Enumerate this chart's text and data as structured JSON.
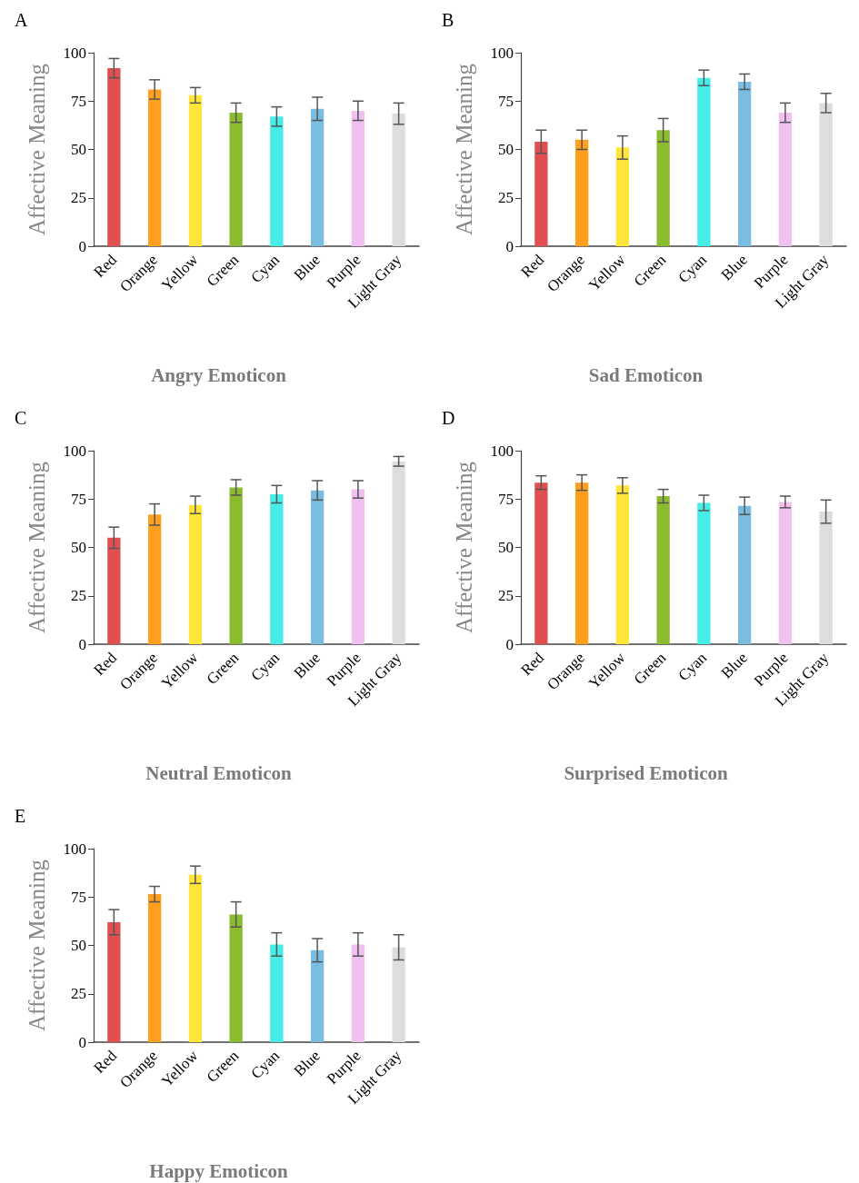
{
  "chart_data": [
    {
      "type": "bar",
      "title": "Angry Emoticon",
      "annotations": [
        "A"
      ],
      "ylabel": "Affective Meaning",
      "categories": [
        "Red",
        "Orange",
        "Yellow",
        "Green",
        "Cyan",
        "Blue",
        "Purple",
        "Light Gray"
      ],
      "values": [
        92,
        81,
        78,
        69,
        67,
        71,
        70,
        68.5
      ],
      "errors": [
        5,
        5,
        4,
        5,
        5,
        6,
        5,
        5.5
      ],
      "colors": [
        "#e05050",
        "#ff9f1c",
        "#ffe53b",
        "#8bbb2f",
        "#45ede6",
        "#7abde0",
        "#f0c0f0",
        "#dddddd"
      ],
      "ylim": [
        0,
        100
      ],
      "yticks": [
        0,
        25,
        50,
        75,
        100
      ]
    },
    {
      "type": "bar",
      "title": "Sad Emoticon",
      "annotations": [
        "B"
      ],
      "ylabel": "Affective Meaning",
      "categories": [
        "Red",
        "Orange",
        "Yellow",
        "Green",
        "Cyan",
        "Blue",
        "Purple",
        "Light Gray"
      ],
      "values": [
        54,
        55,
        51,
        60,
        87,
        85,
        69,
        74
      ],
      "errors": [
        6,
        5,
        6,
        6,
        4,
        4,
        5,
        5
      ],
      "colors": [
        "#e05050",
        "#ff9f1c",
        "#ffe53b",
        "#8bbb2f",
        "#45ede6",
        "#7abde0",
        "#f0c0f0",
        "#dddddd"
      ],
      "ylim": [
        0,
        100
      ],
      "yticks": [
        0,
        25,
        50,
        75,
        100
      ]
    },
    {
      "type": "bar",
      "title": "Neutral Emoticon",
      "annotations": [
        "C"
      ],
      "ylabel": "Affective Meaning",
      "categories": [
        "Red",
        "Orange",
        "Yellow",
        "Green",
        "Cyan",
        "Blue",
        "Purple",
        "Light Gray"
      ],
      "values": [
        55,
        67,
        72,
        81,
        77.5,
        79.5,
        80,
        94.5
      ],
      "errors": [
        5.5,
        5.5,
        4.5,
        4,
        4.5,
        5,
        4.5,
        2.5
      ],
      "colors": [
        "#e05050",
        "#ff9f1c",
        "#ffe53b",
        "#8bbb2f",
        "#45ede6",
        "#7abde0",
        "#f0c0f0",
        "#dddddd"
      ],
      "ylim": [
        0,
        100
      ],
      "yticks": [
        0,
        25,
        50,
        75,
        100
      ]
    },
    {
      "type": "bar",
      "title": "Surprised Emoticon",
      "annotations": [
        "D"
      ],
      "ylabel": "Affective Meaning",
      "categories": [
        "Red",
        "Orange",
        "Yellow",
        "Green",
        "Cyan",
        "Blue",
        "Purple",
        "Light Gray"
      ],
      "values": [
        83.5,
        83.5,
        82,
        76.5,
        73,
        71.5,
        73.5,
        68.5
      ],
      "errors": [
        3.5,
        4,
        4,
        3.5,
        4,
        4.5,
        3,
        6
      ],
      "colors": [
        "#e05050",
        "#ff9f1c",
        "#ffe53b",
        "#8bbb2f",
        "#45ede6",
        "#7abde0",
        "#f0c0f0",
        "#dddddd"
      ],
      "ylim": [
        0,
        100
      ],
      "yticks": [
        0,
        25,
        50,
        75,
        100
      ]
    },
    {
      "type": "bar",
      "title": "Happy Emoticon",
      "annotations": [
        "E"
      ],
      "ylabel": "Affective Meaning",
      "categories": [
        "Red",
        "Orange",
        "Yellow",
        "Green",
        "Cyan",
        "Blue",
        "Purple",
        "Light Gray"
      ],
      "values": [
        62,
        76.5,
        86.5,
        66,
        50.5,
        47.5,
        50.5,
        49
      ],
      "errors": [
        6.5,
        4,
        4.5,
        6.5,
        6,
        6,
        6,
        6.5
      ],
      "colors": [
        "#e05050",
        "#ff9f1c",
        "#ffe53b",
        "#8bbb2f",
        "#45ede6",
        "#7abde0",
        "#f0c0f0",
        "#dddddd"
      ],
      "ylim": [
        0,
        100
      ],
      "yticks": [
        0,
        25,
        50,
        75,
        100
      ]
    }
  ]
}
